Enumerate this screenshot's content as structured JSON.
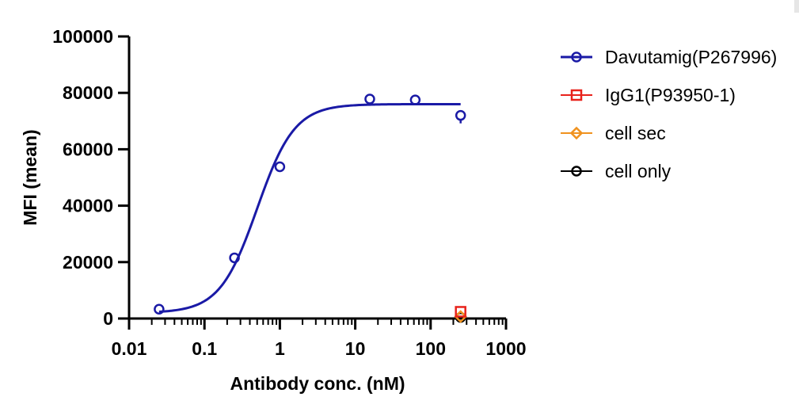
{
  "chart_data": {
    "type": "scatter",
    "xlabel": "Antibody conc. (nM)",
    "ylabel": "MFI (mean)",
    "xscale": "log",
    "xlim": [
      0.01,
      1000
    ],
    "ylim": [
      0,
      100000
    ],
    "xticks": [
      "0.01",
      "0.1",
      "1",
      "10",
      "100",
      "1000"
    ],
    "yticks": [
      "0",
      "20000",
      "40000",
      "60000",
      "80000",
      "100000"
    ],
    "grid": false,
    "legend_position": "right",
    "series": [
      {
        "name": "Davutamig(P267996)",
        "color": "#1a1aa6",
        "marker": "circle",
        "fit_curve": true,
        "points": [
          {
            "x": 0.025,
            "y": 3300
          },
          {
            "x": 0.25,
            "y": 21500
          },
          {
            "x": 1,
            "y": 53800
          },
          {
            "x": 15.6,
            "y": 77800
          },
          {
            "x": 62.5,
            "y": 77500
          },
          {
            "x": 250,
            "y": 72000
          }
        ]
      },
      {
        "name": "IgG1(P93950-1)",
        "color": "#e8221b",
        "marker": "square",
        "fit_curve": false,
        "points": [
          {
            "x": 250,
            "y": 2400
          }
        ]
      },
      {
        "name": "cell sec",
        "color": "#f0921e",
        "marker": "diamond",
        "fit_curve": false,
        "points": [
          {
            "x": 250,
            "y": 700
          }
        ]
      },
      {
        "name": "cell only",
        "color": "#000000",
        "marker": "circle",
        "fit_curve": false,
        "points": [
          {
            "x": 250,
            "y": 400
          }
        ]
      }
    ],
    "fit": {
      "bottom": 2000,
      "top": 76000,
      "ec50": 0.5,
      "hill": 1.75
    }
  }
}
